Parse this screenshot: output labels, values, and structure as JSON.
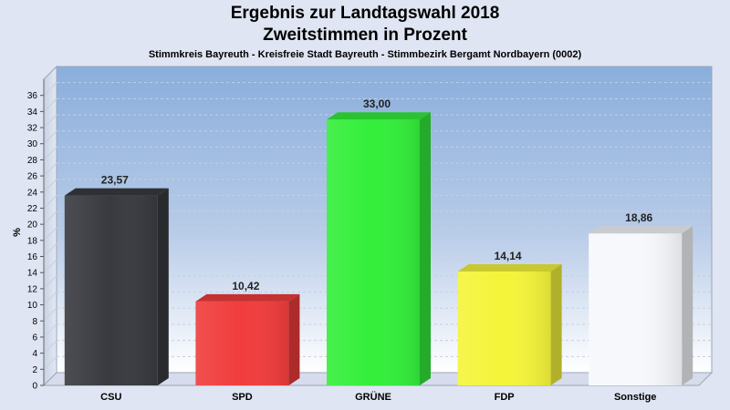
{
  "chart_data": {
    "type": "bar",
    "title": "Ergebnis zur Landtagswahl 2018",
    "subtitle_line": "Zweitstimmen in Prozent",
    "subtitle": "Stimmkreis Bayreuth - Kreisfreie Stadt Bayreuth - Stimmbezirk Bergamt Nordbayern (0002)",
    "ylabel": "%",
    "xlabel": "",
    "ylim": [
      0,
      38
    ],
    "yticks": [
      0,
      2,
      4,
      6,
      8,
      10,
      12,
      14,
      16,
      18,
      20,
      22,
      24,
      26,
      28,
      30,
      32,
      34,
      36
    ],
    "grid": true,
    "categories": [
      "CSU",
      "SPD",
      "GRÜNE",
      "FDP",
      "Sonstige"
    ],
    "values": [
      23.57,
      10.42,
      33.0,
      14.14,
      18.86
    ],
    "value_labels": [
      "23,57",
      "10,42",
      "33,00",
      "14,14",
      "18,86"
    ],
    "colors": [
      "#383a40",
      "#f03c3c",
      "#33ee3a",
      "#f4f43a",
      "#f6f8fc"
    ]
  }
}
